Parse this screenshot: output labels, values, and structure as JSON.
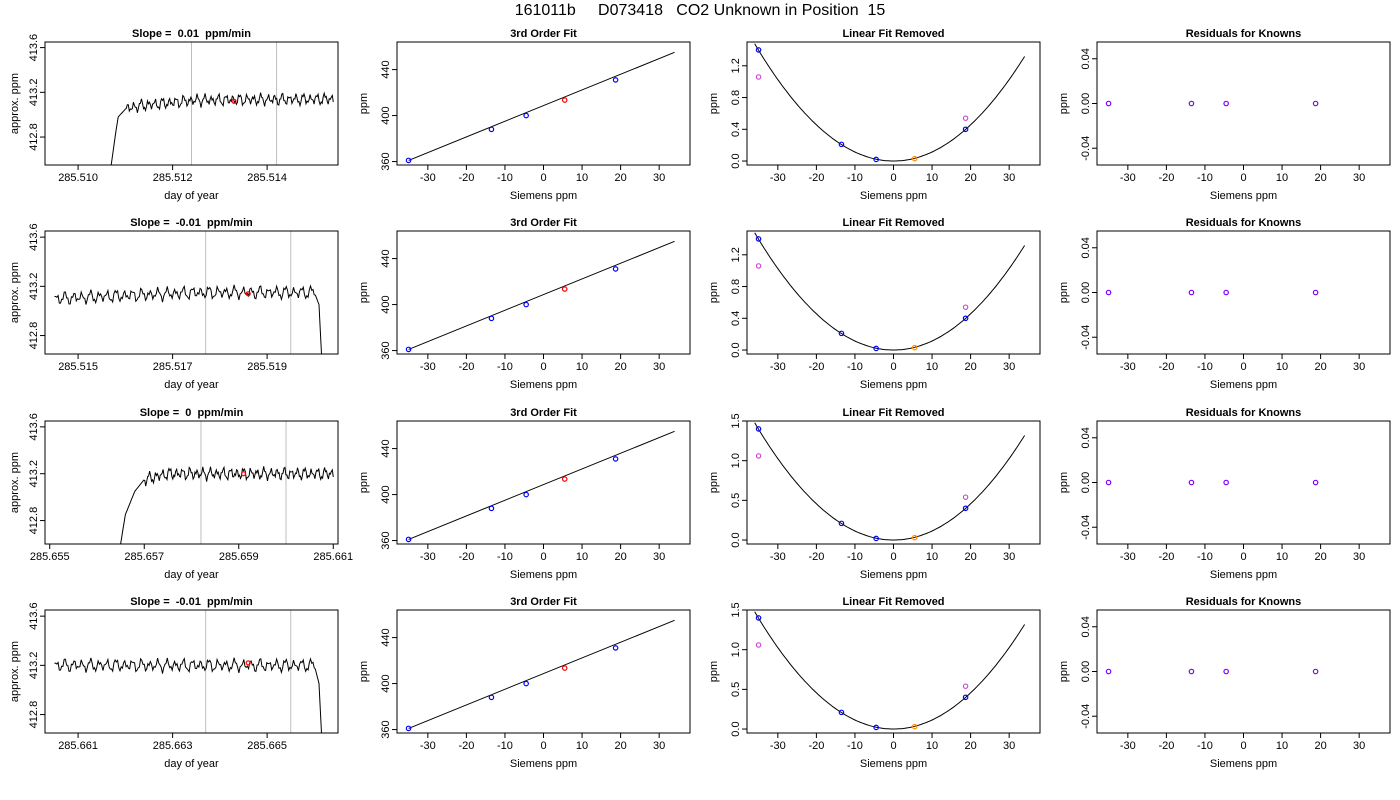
{
  "page_title": "161011b     D073418   CO2 Unknown in Position  15",
  "colors": {
    "trace": "#000000",
    "window_line": "#bebebe",
    "sample_point": "#ff0000",
    "known_point": "#0000ff",
    "unknown_point": "#ff8c00",
    "open_point": "#cc33cc",
    "residual_point": "#8000ff"
  },
  "chart_data": [
    {
      "row": 1,
      "type": "line",
      "title": "Slope =  0.01  ppm/min",
      "xlabel": "day of year",
      "ylabel": "approx. ppm",
      "xlim": [
        285.5093,
        285.5155
      ],
      "ylim": [
        412.55,
        413.65
      ],
      "xticks": [
        285.51,
        285.512,
        285.514
      ],
      "xtick_labels": [
        "285.510",
        "285.512",
        "285.514"
      ],
      "yticks": [
        412.8,
        413.2,
        413.6
      ],
      "ytick_labels": [
        "412.8",
        "413.2",
        "413.6"
      ],
      "window_lines": [
        285.5124,
        285.5142
      ],
      "sample_point": [
        285.5133,
        413.12
      ],
      "segments": [
        [
          285.5107,
          412.55
        ],
        [
          285.5108,
          412.85
        ],
        [
          285.51085,
          412.98
        ],
        [
          285.511,
          413.05
        ],
        [
          285.5113,
          413.08
        ],
        [
          285.5125,
          413.13
        ],
        [
          285.5154,
          413.14
        ]
      ]
    },
    {
      "row": 1,
      "type": "scatter",
      "title": "3rd Order Fit",
      "xlabel": "Siemens ppm",
      "ylabel": "ppm",
      "xlim": [
        -38,
        38
      ],
      "ylim": [
        357,
        464
      ],
      "xticks": [
        -30,
        -20,
        -10,
        0,
        10,
        20,
        30
      ],
      "xtick_labels": [
        "-30",
        "-20",
        "-10",
        "0",
        "10",
        "20",
        "30"
      ],
      "yticks": [
        360,
        400,
        440
      ],
      "ytick_labels": [
        "360",
        "400",
        "440"
      ],
      "fit_line": [
        [
          -35,
          361
        ],
        [
          34,
          455
        ]
      ],
      "points_known": [
        [
          -35,
          361
        ],
        [
          -13.5,
          388
        ],
        [
          -4.5,
          400
        ],
        [
          18.7,
          431
        ]
      ],
      "points_unknown": [
        [
          5.5,
          413.5
        ]
      ]
    },
    {
      "row": 1,
      "type": "scatter",
      "title": "Linear Fit Removed",
      "xlabel": "Siemens ppm",
      "ylabel": "ppm",
      "xlim": [
        -38,
        38
      ],
      "ylim": [
        -0.05,
        1.5
      ],
      "xticks": [
        -30,
        -20,
        -10,
        0,
        10,
        20,
        30
      ],
      "xtick_labels": [
        "-30",
        "-20",
        "-10",
        "0",
        "10",
        "20",
        "30"
      ],
      "yticks": [
        0.0,
        0.4,
        0.8,
        1.2
      ],
      "ytick_labels": [
        "0.0",
        "0.4",
        "0.8",
        "1.2"
      ],
      "curve_coeff": 0.00114,
      "points_known": [
        [
          -35,
          1.4
        ],
        [
          -13.5,
          0.21
        ],
        [
          -4.5,
          0.02
        ],
        [
          18.7,
          0.4
        ]
      ],
      "points_unknown": [
        [
          5.5,
          0.03
        ]
      ],
      "points_open": [
        [
          -35,
          1.06
        ],
        [
          18.7,
          0.54
        ]
      ]
    },
    {
      "row": 1,
      "type": "scatter",
      "title": "Residuals for Knowns",
      "xlabel": "Siemens ppm",
      "ylabel": "ppm",
      "xlim": [
        -38,
        38
      ],
      "ylim": [
        -0.055,
        0.055
      ],
      "xticks": [
        -30,
        -20,
        -10,
        0,
        10,
        20,
        30
      ],
      "xtick_labels": [
        "-30",
        "-20",
        "-10",
        "0",
        "10",
        "20",
        "30"
      ],
      "yticks": [
        -0.04,
        0.0,
        0.04
      ],
      "ytick_labels": [
        "-0.04",
        "0.00",
        "0.04"
      ],
      "points_residual": [
        [
          -35,
          0
        ],
        [
          -13.5,
          0
        ],
        [
          -4.5,
          0
        ],
        [
          18.7,
          0
        ]
      ]
    },
    {
      "row": 2,
      "type": "line",
      "title": "Slope =  -0.01  ppm/min",
      "xlabel": "day of year",
      "ylabel": "approx. ppm",
      "xlim": [
        285.5143,
        285.5205
      ],
      "ylim": [
        412.65,
        413.65
      ],
      "xticks": [
        285.515,
        285.517,
        285.519
      ],
      "xtick_labels": [
        "285.515",
        "285.517",
        "285.519"
      ],
      "yticks": [
        412.8,
        413.2,
        413.6
      ],
      "ytick_labels": [
        "412.8",
        "413.2",
        "413.6"
      ],
      "window_lines": [
        285.5177,
        285.5195
      ],
      "sample_point": [
        285.5186,
        413.14
      ],
      "segments": [
        [
          285.5145,
          413.1
        ],
        [
          285.5175,
          413.15
        ],
        [
          285.52,
          413.15
        ],
        [
          285.5201,
          413.05
        ],
        [
          285.52015,
          412.65
        ]
      ]
    },
    {
      "row": 2,
      "type": "scatter",
      "title": "3rd Order Fit",
      "xlabel": "Siemens ppm",
      "ylabel": "ppm",
      "xlim": [
        -38,
        38
      ],
      "ylim": [
        357,
        464
      ],
      "xticks": [
        -30,
        -20,
        -10,
        0,
        10,
        20,
        30
      ],
      "xtick_labels": [
        "-30",
        "-20",
        "-10",
        "0",
        "10",
        "20",
        "30"
      ],
      "yticks": [
        360,
        400,
        440
      ],
      "ytick_labels": [
        "360",
        "400",
        "440"
      ],
      "fit_line": [
        [
          -35,
          361
        ],
        [
          34,
          455
        ]
      ],
      "points_known": [
        [
          -35,
          361
        ],
        [
          -13.5,
          388
        ],
        [
          -4.5,
          400
        ],
        [
          18.7,
          431
        ]
      ],
      "points_unknown": [
        [
          5.5,
          413.5
        ]
      ]
    },
    {
      "row": 2,
      "type": "scatter",
      "title": "Linear Fit Removed",
      "xlabel": "Siemens ppm",
      "ylabel": "ppm",
      "xlim": [
        -38,
        38
      ],
      "ylim": [
        -0.05,
        1.5
      ],
      "xticks": [
        -30,
        -20,
        -10,
        0,
        10,
        20,
        30
      ],
      "xtick_labels": [
        "-30",
        "-20",
        "-10",
        "0",
        "10",
        "20",
        "30"
      ],
      "yticks": [
        0.0,
        0.4,
        0.8,
        1.2
      ],
      "ytick_labels": [
        "0.0",
        "0.4",
        "0.8",
        "1.2"
      ],
      "curve_coeff": 0.00114,
      "points_known": [
        [
          -35,
          1.4
        ],
        [
          -13.5,
          0.21
        ],
        [
          -4.5,
          0.02
        ],
        [
          18.7,
          0.4
        ]
      ],
      "points_unknown": [
        [
          5.5,
          0.03
        ]
      ],
      "points_open": [
        [
          -35,
          1.06
        ],
        [
          18.7,
          0.54
        ]
      ]
    },
    {
      "row": 2,
      "type": "scatter",
      "title": "Residuals for Knowns",
      "xlabel": "Siemens ppm",
      "ylabel": "ppm",
      "xlim": [
        -38,
        38
      ],
      "ylim": [
        -0.055,
        0.055
      ],
      "xticks": [
        -30,
        -20,
        -10,
        0,
        10,
        20,
        30
      ],
      "xtick_labels": [
        "-30",
        "-20",
        "-10",
        "0",
        "10",
        "20",
        "30"
      ],
      "yticks": [
        -0.04,
        0.0,
        0.04
      ],
      "ytick_labels": [
        "-0.04",
        "0.00",
        "0.04"
      ],
      "points_residual": [
        [
          -35,
          0
        ],
        [
          -13.5,
          0
        ],
        [
          -4.5,
          0
        ],
        [
          18.7,
          0
        ]
      ]
    },
    {
      "row": 3,
      "type": "line",
      "title": "Slope =  0  ppm/min",
      "xlabel": "day of year",
      "ylabel": "approx. ppm",
      "xlim": [
        285.6549,
        285.6611
      ],
      "ylim": [
        412.6,
        413.65
      ],
      "xticks": [
        285.655,
        285.657,
        285.659,
        285.661
      ],
      "xtick_labels": [
        "285.655",
        "285.657",
        "285.659",
        "285.661"
      ],
      "yticks": [
        412.8,
        413.2,
        413.6
      ],
      "ytick_labels": [
        "412.8",
        "413.2",
        "413.6"
      ],
      "window_lines": [
        285.6582,
        285.66
      ],
      "sample_point": [
        285.6591,
        413.2
      ],
      "segments": [
        [
          285.6565,
          412.6
        ],
        [
          285.6566,
          412.85
        ],
        [
          285.6568,
          413.05
        ],
        [
          285.657,
          413.15
        ],
        [
          285.6575,
          413.2
        ],
        [
          285.661,
          413.2
        ]
      ]
    },
    {
      "row": 3,
      "type": "scatter",
      "title": "3rd Order Fit",
      "xlabel": "Siemens ppm",
      "ylabel": "ppm",
      "xlim": [
        -38,
        38
      ],
      "ylim": [
        357,
        464
      ],
      "xticks": [
        -30,
        -20,
        -10,
        0,
        10,
        20,
        30
      ],
      "xtick_labels": [
        "-30",
        "-20",
        "-10",
        "0",
        "10",
        "20",
        "30"
      ],
      "yticks": [
        360,
        400,
        440
      ],
      "ytick_labels": [
        "360",
        "400",
        "440"
      ],
      "fit_line": [
        [
          -35,
          361
        ],
        [
          34,
          455
        ]
      ],
      "points_known": [
        [
          -35,
          361
        ],
        [
          -13.5,
          388
        ],
        [
          -4.5,
          400
        ],
        [
          18.7,
          431
        ]
      ],
      "points_unknown": [
        [
          5.5,
          413.5
        ]
      ]
    },
    {
      "row": 3,
      "type": "scatter",
      "title": "Linear Fit Removed",
      "xlabel": "Siemens ppm",
      "ylabel": "ppm",
      "xlim": [
        -38,
        38
      ],
      "ylim": [
        -0.05,
        1.5
      ],
      "xticks": [
        -30,
        -20,
        -10,
        0,
        10,
        20,
        30
      ],
      "xtick_labels": [
        "-30",
        "-20",
        "-10",
        "0",
        "10",
        "20",
        "30"
      ],
      "yticks": [
        0.0,
        0.5,
        1.0,
        1.5
      ],
      "ytick_labels": [
        "0.0",
        "0.5",
        "1.0",
        "1.5"
      ],
      "curve_coeff": 0.00114,
      "points_known": [
        [
          -35,
          1.4
        ],
        [
          -13.5,
          0.21
        ],
        [
          -4.5,
          0.02
        ],
        [
          18.7,
          0.4
        ]
      ],
      "points_unknown": [
        [
          5.5,
          0.03
        ]
      ],
      "points_open": [
        [
          -35,
          1.06
        ],
        [
          18.7,
          0.54
        ]
      ]
    },
    {
      "row": 3,
      "type": "scatter",
      "title": "Residuals for Knowns",
      "xlabel": "Siemens ppm",
      "ylabel": "ppm",
      "xlim": [
        -38,
        38
      ],
      "ylim": [
        -0.055,
        0.055
      ],
      "xticks": [
        -30,
        -20,
        -10,
        0,
        10,
        20,
        30
      ],
      "xtick_labels": [
        "-30",
        "-20",
        "-10",
        "0",
        "10",
        "20",
        "30"
      ],
      "yticks": [
        -0.04,
        0.0,
        0.04
      ],
      "ytick_labels": [
        "-0.04",
        "0.00",
        "0.04"
      ],
      "points_residual": [
        [
          -35,
          0
        ],
        [
          -13.5,
          0
        ],
        [
          -4.5,
          0
        ],
        [
          18.7,
          0
        ]
      ]
    },
    {
      "row": 4,
      "type": "line",
      "title": "Slope =  -0.01  ppm/min",
      "xlabel": "day of year",
      "ylabel": "approx. ppm",
      "xlim": [
        285.6603,
        285.6665
      ],
      "ylim": [
        412.65,
        413.65
      ],
      "xticks": [
        285.661,
        285.663,
        285.665
      ],
      "xtick_labels": [
        "285.661",
        "285.663",
        "285.665"
      ],
      "yticks": [
        412.8,
        413.2,
        413.6
      ],
      "ytick_labels": [
        "412.8",
        "413.2",
        "413.6"
      ],
      "window_lines": [
        285.6637,
        285.6655
      ],
      "sample_point": [
        285.6646,
        413.22
      ],
      "segments": [
        [
          285.6605,
          413.2
        ],
        [
          285.6635,
          413.2
        ],
        [
          285.666,
          413.2
        ],
        [
          285.6661,
          413.05
        ],
        [
          285.66615,
          412.65
        ]
      ]
    },
    {
      "row": 4,
      "type": "scatter",
      "title": "3rd Order Fit",
      "xlabel": "Siemens ppm",
      "ylabel": "ppm",
      "xlim": [
        -38,
        38
      ],
      "ylim": [
        357,
        464
      ],
      "xticks": [
        -30,
        -20,
        -10,
        0,
        10,
        20,
        30
      ],
      "xtick_labels": [
        "-30",
        "-20",
        "-10",
        "0",
        "10",
        "20",
        "30"
      ],
      "yticks": [
        360,
        400,
        440
      ],
      "ytick_labels": [
        "360",
        "400",
        "440"
      ],
      "fit_line": [
        [
          -35,
          361
        ],
        [
          34,
          455
        ]
      ],
      "points_known": [
        [
          -35,
          361
        ],
        [
          -13.5,
          388
        ],
        [
          -4.5,
          400
        ],
        [
          18.7,
          431
        ]
      ],
      "points_unknown": [
        [
          5.5,
          413.5
        ]
      ]
    },
    {
      "row": 4,
      "type": "scatter",
      "title": "Linear Fit Removed",
      "xlabel": "Siemens ppm",
      "ylabel": "ppm",
      "xlim": [
        -38,
        38
      ],
      "ylim": [
        -0.05,
        1.5
      ],
      "xticks": [
        -30,
        -20,
        -10,
        0,
        10,
        20,
        30
      ],
      "xtick_labels": [
        "-30",
        "-20",
        "-10",
        "0",
        "10",
        "20",
        "30"
      ],
      "yticks": [
        0.0,
        0.5,
        1.0,
        1.5
      ],
      "ytick_labels": [
        "0.0",
        "0.5",
        "1.0",
        "1.5"
      ],
      "curve_coeff": 0.00114,
      "points_known": [
        [
          -35,
          1.4
        ],
        [
          -13.5,
          0.21
        ],
        [
          -4.5,
          0.02
        ],
        [
          18.7,
          0.4
        ]
      ],
      "points_unknown": [
        [
          5.5,
          0.03
        ]
      ],
      "points_open": [
        [
          -35,
          1.06
        ],
        [
          18.7,
          0.54
        ]
      ]
    },
    {
      "row": 4,
      "type": "scatter",
      "title": "Residuals for Knowns",
      "xlabel": "Siemens ppm",
      "ylabel": "ppm",
      "xlim": [
        -38,
        38
      ],
      "ylim": [
        -0.055,
        0.055
      ],
      "xticks": [
        -30,
        -20,
        -10,
        0,
        10,
        20,
        30
      ],
      "xtick_labels": [
        "-30",
        "-20",
        "-10",
        "0",
        "10",
        "20",
        "30"
      ],
      "yticks": [
        -0.04,
        0.0,
        0.04
      ],
      "ytick_labels": [
        "-0.04",
        "0.00",
        "0.04"
      ],
      "points_residual": [
        [
          -35,
          0
        ],
        [
          -13.5,
          0
        ],
        [
          -4.5,
          0
        ],
        [
          18.7,
          0
        ]
      ]
    }
  ]
}
